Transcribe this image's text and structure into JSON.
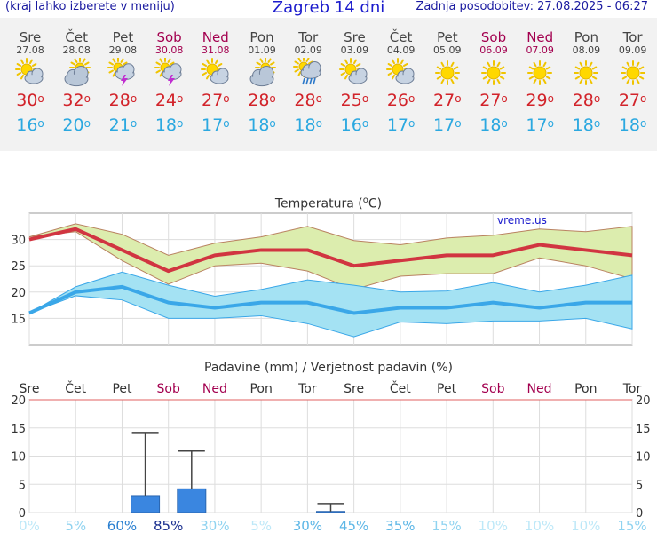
{
  "header": {
    "left": "(kraj lahko izberete v meniju)",
    "title": "Zagreb 14 dni",
    "updated": "Zadnja posodobitev: 27.08.2025 - 06:27"
  },
  "days": [
    {
      "name": "Sre",
      "date": "27.08",
      "weekend": false,
      "icon": "sun-cloud-icon",
      "max": "30",
      "min": "16"
    },
    {
      "name": "Čet",
      "date": "28.08",
      "weekend": false,
      "icon": "cloudy-icon",
      "max": "32",
      "min": "20"
    },
    {
      "name": "Pet",
      "date": "29.08",
      "weekend": false,
      "icon": "thunderstorm-icon",
      "max": "28",
      "min": "21"
    },
    {
      "name": "Sob",
      "date": "30.08",
      "weekend": true,
      "icon": "thunderstorm-icon",
      "max": "24",
      "min": "18"
    },
    {
      "name": "Ned",
      "date": "31.08",
      "weekend": true,
      "icon": "sun-cloud-icon",
      "max": "27",
      "min": "17"
    },
    {
      "name": "Pon",
      "date": "01.09",
      "weekend": false,
      "icon": "cloudy-icon",
      "max": "28",
      "min": "18"
    },
    {
      "name": "Tor",
      "date": "02.09",
      "weekend": false,
      "icon": "rain-shower-icon",
      "max": "28",
      "min": "18"
    },
    {
      "name": "Sre",
      "date": "03.09",
      "weekend": false,
      "icon": "sun-cloud-icon",
      "max": "25",
      "min": "16"
    },
    {
      "name": "Čet",
      "date": "04.09",
      "weekend": false,
      "icon": "sun-cloud-icon",
      "max": "26",
      "min": "17"
    },
    {
      "name": "Pet",
      "date": "05.09",
      "weekend": false,
      "icon": "sun-icon",
      "max": "27",
      "min": "17"
    },
    {
      "name": "Sob",
      "date": "06.09",
      "weekend": true,
      "icon": "sun-icon",
      "max": "27",
      "min": "18"
    },
    {
      "name": "Ned",
      "date": "07.09",
      "weekend": true,
      "icon": "sun-icon",
      "max": "29",
      "min": "17"
    },
    {
      "name": "Pon",
      "date": "08.09",
      "weekend": false,
      "icon": "sun-icon",
      "max": "28",
      "min": "18"
    },
    {
      "name": "Tor",
      "date": "09.09",
      "weekend": false,
      "icon": "sun-icon",
      "max": "27",
      "min": "18"
    }
  ],
  "degree_symbol": "o",
  "chart_data": [
    {
      "type": "line",
      "title": "Temperatura (°C)",
      "watermark": "vreme.us",
      "ylim": [
        10,
        35
      ],
      "yticks": [
        "15",
        "20",
        "25",
        "30"
      ],
      "x": [
        "Sre",
        "Čet",
        "Pet",
        "Sob",
        "Ned",
        "Pon",
        "Tor",
        "Sre",
        "Čet",
        "Pet",
        "Sob",
        "Ned",
        "Pon",
        "Tor"
      ],
      "series": [
        {
          "role": "max",
          "color": "#d13541",
          "values": [
            30,
            32,
            28,
            24,
            27,
            28,
            28,
            25,
            26,
            27,
            27,
            29,
            28,
            27
          ]
        },
        {
          "role": "min",
          "color": "#3aa7e8",
          "values": [
            16,
            20,
            21,
            18,
            17,
            18,
            18,
            16,
            17,
            17,
            18,
            17,
            18,
            18
          ]
        }
      ],
      "bands": [
        {
          "role": "max-range",
          "fill": "#dcedae",
          "stroke": "#b98260",
          "low": [
            30.5,
            31.5,
            26,
            21.5,
            25,
            25.5,
            24,
            20.5,
            23,
            23.5,
            23.5,
            26.5,
            25,
            22.5
          ],
          "high": [
            30.5,
            33,
            31,
            27,
            29.3,
            30.5,
            32.5,
            29.8,
            29,
            30.3,
            30.8,
            32,
            31.5,
            32.5
          ]
        },
        {
          "role": "min-range",
          "fill": "#a4e2f3",
          "stroke": "#3aa7e8",
          "low": [
            16,
            19.3,
            18.5,
            15,
            15,
            15.5,
            14,
            11.5,
            14.3,
            14,
            14.5,
            14.5,
            15,
            13
          ],
          "high": [
            16,
            21,
            23.8,
            21.3,
            19.2,
            20.5,
            22.3,
            21.3,
            20,
            20.2,
            21.8,
            20,
            21.3,
            23.2
          ]
        }
      ]
    },
    {
      "type": "bar",
      "title": "Padavine (mm) / Verjetnost padavin (%)",
      "x": [
        "Sre",
        "Čet",
        "Pet",
        "Sob",
        "Ned",
        "Pon",
        "Tor",
        "Sre",
        "Čet",
        "Pet",
        "Sob",
        "Ned",
        "Pon",
        "Tor"
      ],
      "weekend": [
        false,
        false,
        false,
        true,
        true,
        false,
        false,
        false,
        false,
        false,
        true,
        true,
        false,
        false
      ],
      "ylim": [
        0,
        20
      ],
      "yticks": [
        "0",
        "5",
        "10",
        "15",
        "20"
      ],
      "values": [
        0,
        0,
        3,
        4.2,
        0,
        0,
        0.2,
        0,
        0,
        0,
        0,
        0,
        0,
        0
      ],
      "error_high": [
        null,
        null,
        14.2,
        10.9,
        null,
        null,
        1.6,
        null,
        null,
        null,
        null,
        null,
        null,
        null
      ],
      "probability": [
        "0%",
        "5%",
        "60%",
        "85%",
        "30%",
        "5%",
        "30%",
        "45%",
        "35%",
        "15%",
        "10%",
        "10%",
        "10%",
        "15%"
      ],
      "probability_colors": [
        "#bde8f8",
        "#8fd3f0",
        "#2a7fd0",
        "#1a2f8f",
        "#8fd3f0",
        "#bde8f8",
        "#5cb6e6",
        "#5cb6e6",
        "#5cb6e6",
        "#8fd3f0",
        "#bde8f8",
        "#bde8f8",
        "#bde8f8",
        "#8fd3f0"
      ]
    }
  ]
}
